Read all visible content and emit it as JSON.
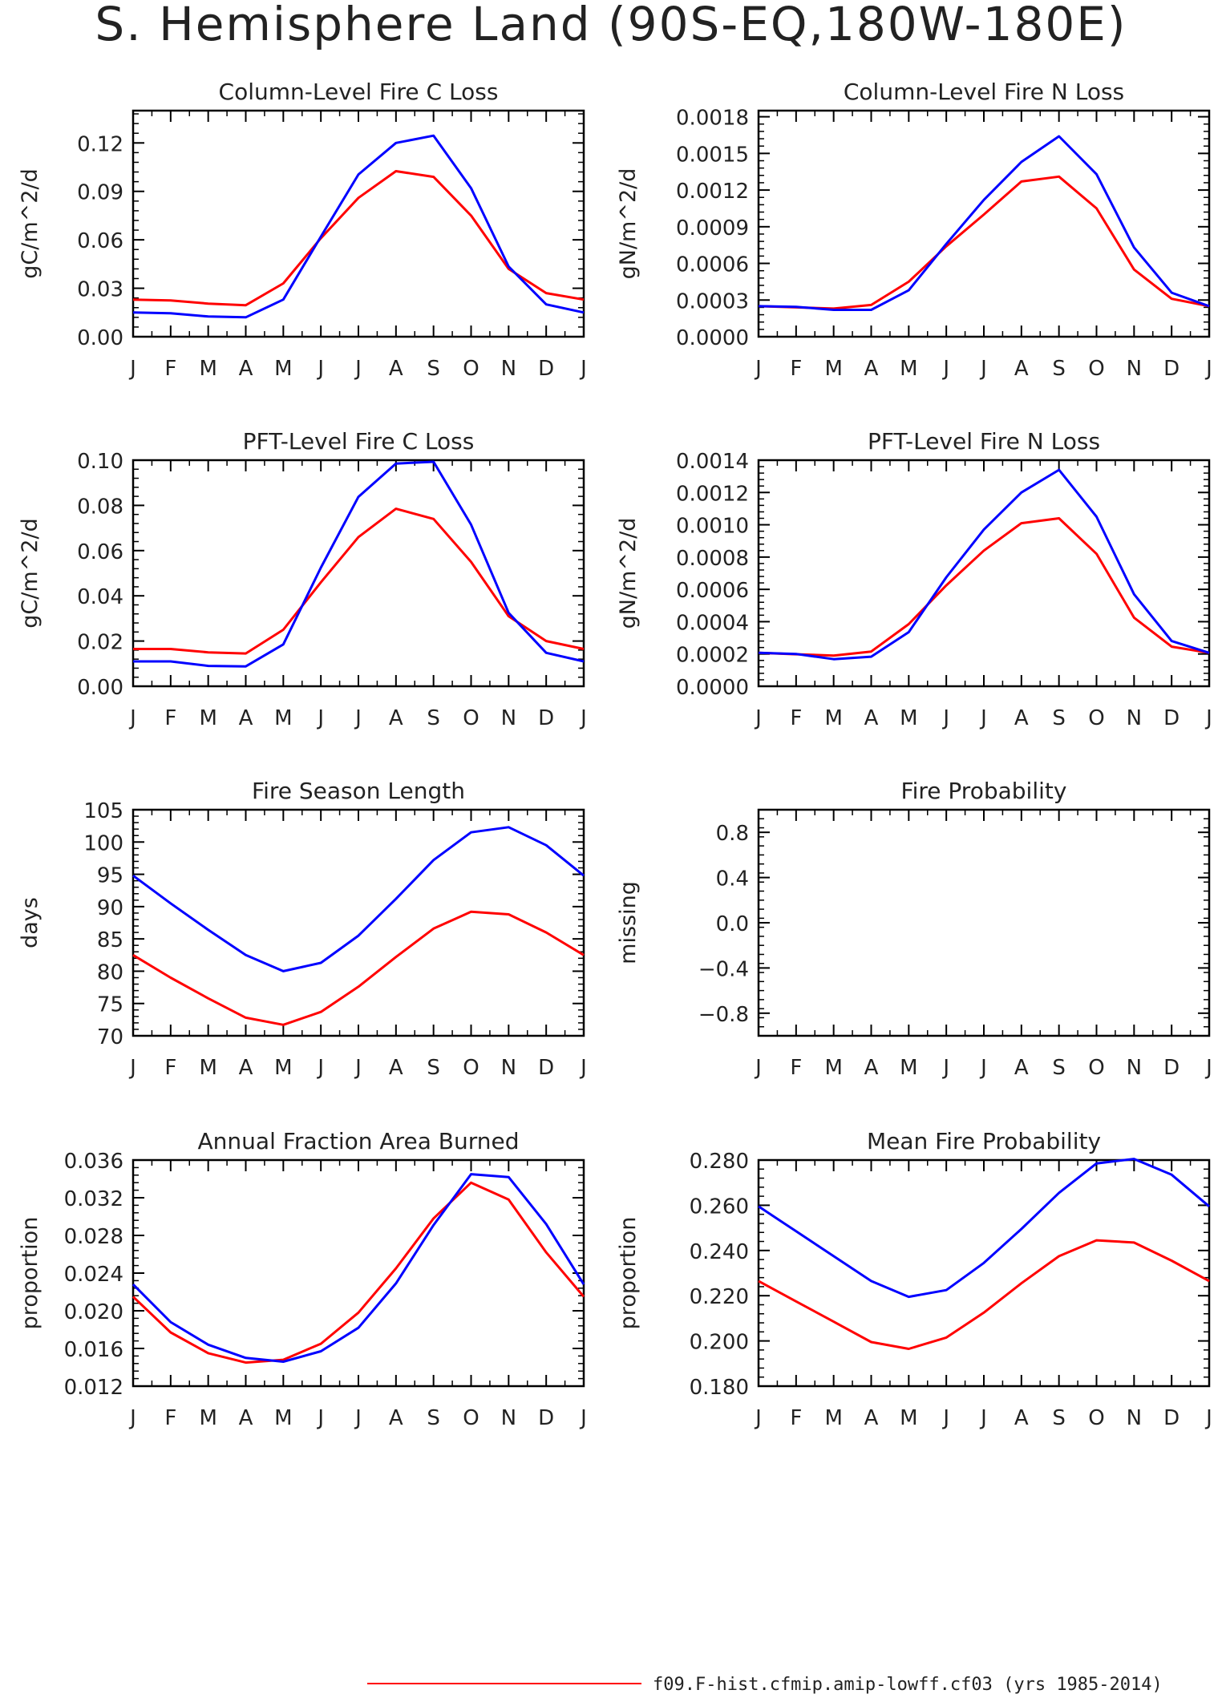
{
  "title": "S. Hemisphere Land (90S-EQ,180W-180E)",
  "legend": {
    "entries": [
      {
        "label": "f09.F-hist.cfmip.amip-lowff.cf03 (yrs 1985-2014)",
        "color": "#ff0000"
      }
    ]
  },
  "colors": {
    "red": "#ff0000",
    "blue": "#0000ff",
    "axis": "#000000"
  },
  "chart_data": [
    {
      "type": "line",
      "title": "Column-Level Fire C Loss",
      "ylabel": "gC/m^2/d",
      "x": [
        "J",
        "F",
        "M",
        "A",
        "M",
        "J",
        "J",
        "A",
        "S",
        "O",
        "N",
        "D",
        "J"
      ],
      "ylim": [
        0,
        0.14
      ],
      "yticks": [
        0,
        0.03,
        0.06,
        0.09,
        0.12
      ],
      "ytick_labels": [
        "0.00",
        "0.03",
        "0.06",
        "0.09",
        "0.12"
      ],
      "series": [
        {
          "color": "#ff0000",
          "values": [
            0.023,
            0.0225,
            0.0205,
            0.0195,
            0.033,
            0.061,
            0.086,
            0.1025,
            0.099,
            0.075,
            0.042,
            0.027,
            0.023
          ]
        },
        {
          "color": "#0000ff",
          "values": [
            0.015,
            0.0145,
            0.0125,
            0.012,
            0.023,
            0.062,
            0.1005,
            0.12,
            0.1245,
            0.092,
            0.0435,
            0.02,
            0.015
          ]
        }
      ]
    },
    {
      "type": "line",
      "title": "Column-Level Fire N Loss",
      "ylabel": "gN/m^2/d",
      "x": [
        "J",
        "F",
        "M",
        "A",
        "M",
        "J",
        "J",
        "A",
        "S",
        "O",
        "N",
        "D",
        "J"
      ],
      "ylim": [
        0,
        0.00185
      ],
      "yticks": [
        0,
        0.0003,
        0.0006,
        0.0009,
        0.0012,
        0.0015,
        0.0018
      ],
      "ytick_labels": [
        "0.0000",
        "0.0003",
        "0.0006",
        "0.0009",
        "0.0012",
        "0.0015",
        "0.0018"
      ],
      "series": [
        {
          "color": "#ff0000",
          "values": [
            0.00025,
            0.00024,
            0.00023,
            0.00026,
            0.00045,
            0.00074,
            0.001,
            0.00127,
            0.00131,
            0.00105,
            0.00055,
            0.00031,
            0.00025
          ]
        },
        {
          "color": "#0000ff",
          "values": [
            0.00025,
            0.000245,
            0.00022,
            0.00022,
            0.00038,
            0.00076,
            0.00112,
            0.00143,
            0.00164,
            0.00133,
            0.00073,
            0.00036,
            0.00025
          ]
        }
      ]
    },
    {
      "type": "line",
      "title": "PFT-Level Fire C Loss",
      "ylabel": "gC/m^2/d",
      "x": [
        "J",
        "F",
        "M",
        "A",
        "M",
        "J",
        "J",
        "A",
        "S",
        "O",
        "N",
        "D",
        "J"
      ],
      "ylim": [
        0,
        0.1
      ],
      "yticks": [
        0,
        0.02,
        0.04,
        0.06,
        0.08,
        0.1
      ],
      "ytick_labels": [
        "0.00",
        "0.02",
        "0.04",
        "0.06",
        "0.08",
        "0.10"
      ],
      "series": [
        {
          "color": "#ff0000",
          "values": [
            0.0165,
            0.0165,
            0.015,
            0.0145,
            0.025,
            0.046,
            0.066,
            0.0785,
            0.074,
            0.055,
            0.031,
            0.02,
            0.0165
          ]
        },
        {
          "color": "#0000ff",
          "values": [
            0.011,
            0.011,
            0.009,
            0.0088,
            0.0185,
            0.0525,
            0.0838,
            0.0985,
            0.0993,
            0.0715,
            0.0325,
            0.0148,
            0.011
          ]
        }
      ]
    },
    {
      "type": "line",
      "title": "PFT-Level Fire N Loss",
      "ylabel": "gN/m^2/d",
      "x": [
        "J",
        "F",
        "M",
        "A",
        "M",
        "J",
        "J",
        "A",
        "S",
        "O",
        "N",
        "D",
        "J"
      ],
      "ylim": [
        0,
        0.0014
      ],
      "yticks": [
        0,
        0.0002,
        0.0004,
        0.0006,
        0.0008,
        0.001,
        0.0012,
        0.0014
      ],
      "ytick_labels": [
        "0.0000",
        "0.0002",
        "0.0004",
        "0.0006",
        "0.0008",
        "0.0010",
        "0.0012",
        "0.0014"
      ],
      "series": [
        {
          "color": "#ff0000",
          "values": [
            0.000207,
            0.000198,
            0.00019,
            0.000215,
            0.000385,
            0.000625,
            0.00084,
            0.00101,
            0.00104,
            0.00082,
            0.000425,
            0.000245,
            0.000207
          ]
        },
        {
          "color": "#0000ff",
          "values": [
            0.000207,
            0.0002,
            0.000168,
            0.000183,
            0.000335,
            0.000675,
            0.00097,
            0.0012,
            0.00134,
            0.00105,
            0.00057,
            0.00028,
            0.000207
          ]
        }
      ]
    },
    {
      "type": "line",
      "title": "Fire Season Length",
      "ylabel": "days",
      "x": [
        "J",
        "F",
        "M",
        "A",
        "M",
        "J",
        "J",
        "A",
        "S",
        "O",
        "N",
        "D",
        "J"
      ],
      "ylim": [
        70,
        105
      ],
      "yticks": [
        70,
        75,
        80,
        85,
        90,
        95,
        100,
        105
      ],
      "ytick_labels": [
        "70",
        "75",
        "80",
        "85",
        "90",
        "95",
        "100",
        "105"
      ],
      "series": [
        {
          "color": "#ff0000",
          "values": [
            82.5,
            79,
            75.8,
            72.8,
            71.7,
            73.7,
            77.6,
            82.2,
            86.6,
            89.2,
            88.8,
            86,
            82.5
          ]
        },
        {
          "color": "#0000ff",
          "values": [
            94.8,
            90.5,
            86.4,
            82.5,
            80,
            81.3,
            85.5,
            91.2,
            97.2,
            101.5,
            102.3,
            99.5,
            94.8
          ]
        }
      ]
    },
    {
      "type": "line",
      "title": "Fire Probability",
      "ylabel": "missing",
      "x": [
        "J",
        "F",
        "M",
        "A",
        "M",
        "J",
        "J",
        "A",
        "S",
        "O",
        "N",
        "D",
        "J"
      ],
      "ylim": [
        -1,
        1
      ],
      "yticks": [
        -0.8,
        -0.4,
        0,
        0.4,
        0.8
      ],
      "ytick_labels": [
        "−0.8",
        "−0.4",
        "0.0",
        "0.4",
        "0.8"
      ],
      "series": []
    },
    {
      "type": "line",
      "title": "Annual Fraction Area Burned",
      "ylabel": "proportion",
      "x": [
        "J",
        "F",
        "M",
        "A",
        "M",
        "J",
        "J",
        "A",
        "S",
        "O",
        "N",
        "D",
        "J"
      ],
      "ylim": [
        0.012,
        0.036
      ],
      "yticks": [
        0.012,
        0.016,
        0.02,
        0.024,
        0.028,
        0.032,
        0.036
      ],
      "ytick_labels": [
        "0.012",
        "0.016",
        "0.020",
        "0.024",
        "0.028",
        "0.032",
        "0.036"
      ],
      "series": [
        {
          "color": "#ff0000",
          "values": [
            0.0215,
            0.0177,
            0.0155,
            0.0145,
            0.0148,
            0.0165,
            0.0198,
            0.0245,
            0.0298,
            0.0336,
            0.0318,
            0.0262,
            0.0215
          ]
        },
        {
          "color": "#0000ff",
          "values": [
            0.0228,
            0.0188,
            0.0164,
            0.015,
            0.0146,
            0.0157,
            0.0182,
            0.0229,
            0.0291,
            0.0345,
            0.0342,
            0.0292,
            0.0228
          ]
        }
      ]
    },
    {
      "type": "line",
      "title": "Mean Fire Probability",
      "ylabel": "proportion",
      "x": [
        "J",
        "F",
        "M",
        "A",
        "M",
        "J",
        "J",
        "A",
        "S",
        "O",
        "N",
        "D",
        "J"
      ],
      "ylim": [
        0.18,
        0.28
      ],
      "yticks": [
        0.18,
        0.2,
        0.22,
        0.24,
        0.26,
        0.28
      ],
      "ytick_labels": [
        "0.180",
        "0.200",
        "0.220",
        "0.240",
        "0.260",
        "0.280"
      ],
      "series": [
        {
          "color": "#ff0000",
          "values": [
            0.2265,
            0.2175,
            0.2085,
            0.1995,
            0.1965,
            0.2015,
            0.2125,
            0.2255,
            0.2375,
            0.2445,
            0.2435,
            0.2355,
            0.2265
          ]
        },
        {
          "color": "#0000ff",
          "values": [
            0.2595,
            0.2485,
            0.2375,
            0.2265,
            0.2195,
            0.2225,
            0.2345,
            0.2495,
            0.2655,
            0.2785,
            0.2805,
            0.2735,
            0.2595
          ]
        }
      ]
    }
  ]
}
